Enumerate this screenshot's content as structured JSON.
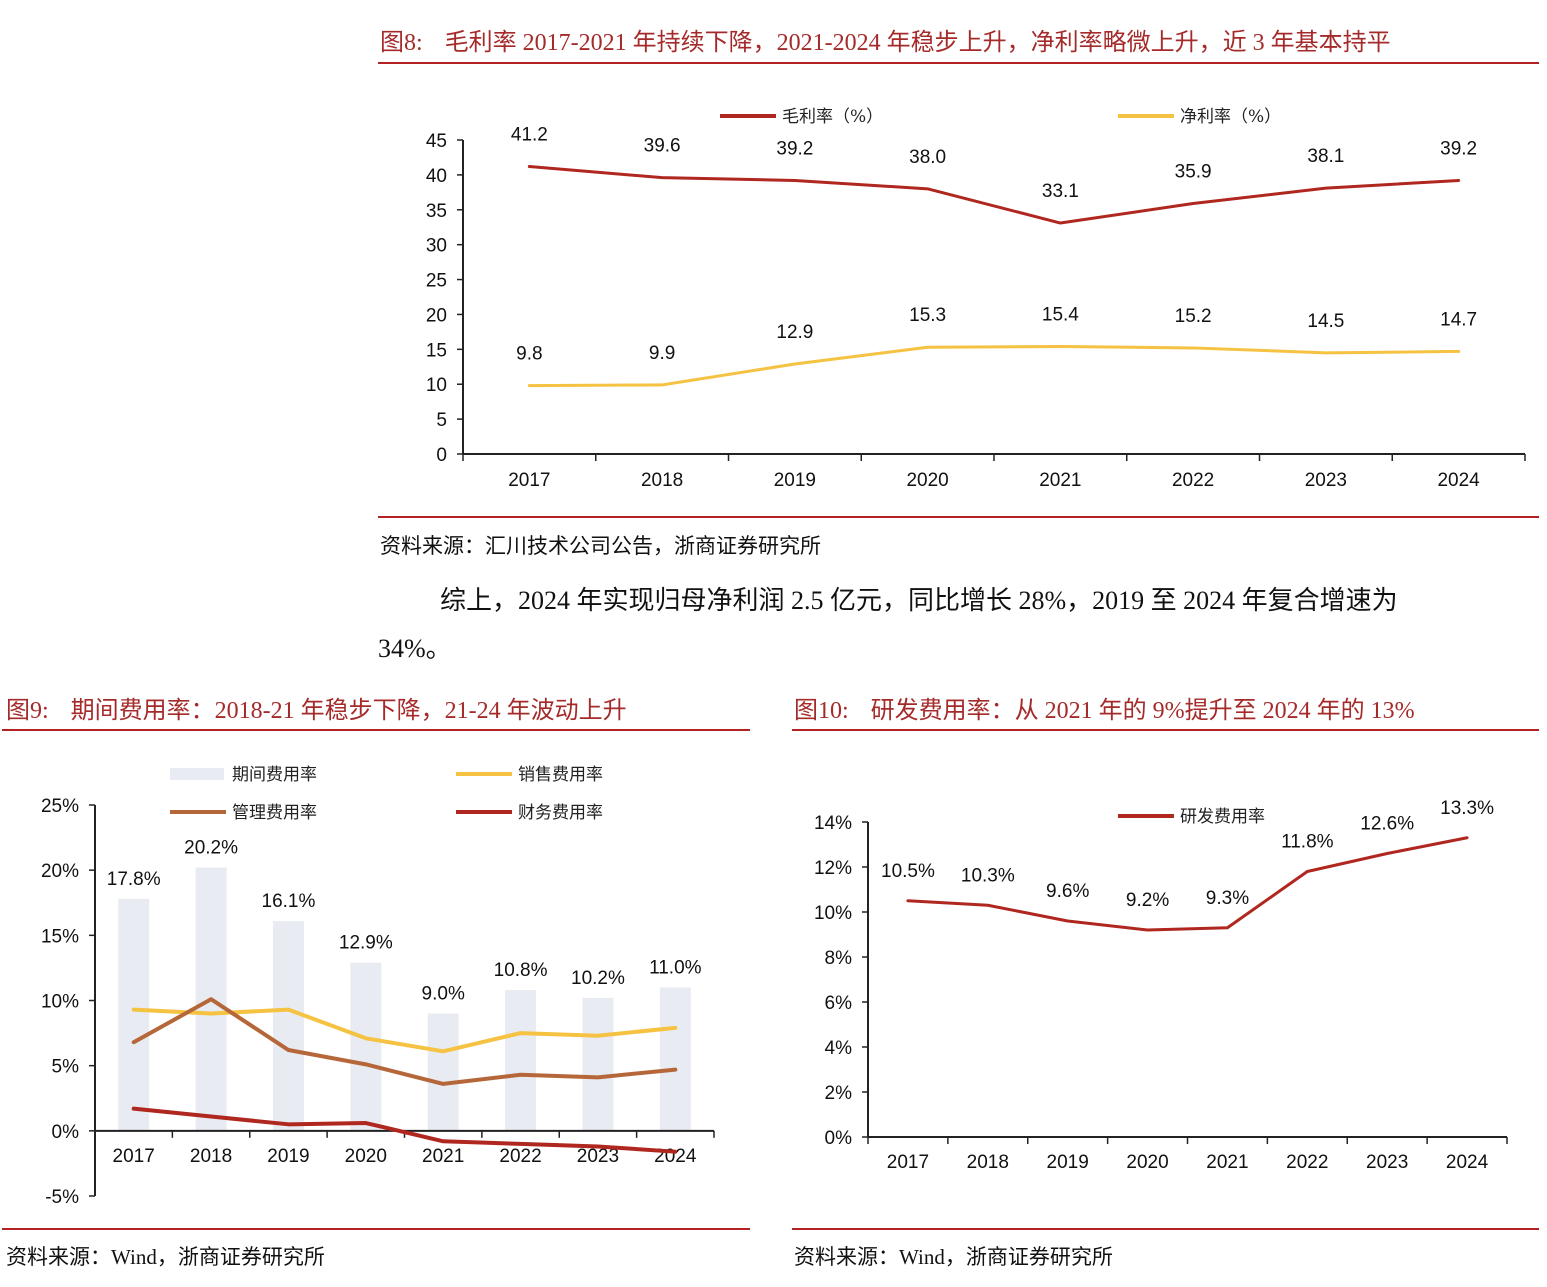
{
  "figure8": {
    "number": "图8:",
    "title": "毛利率 2017-2021 年持续下降，2021-2024 年稳步上升，净利率略微上升，近 3 年基本持平",
    "source": "资料来源：汇川技术公司公告，浙商证券研究所"
  },
  "paragraph": {
    "line1": "综上，2024 年实现归母净利润 2.5 亿元，同比增长 28%，2019 至 2024 年复合增速为",
    "line2": "34%。"
  },
  "figure9": {
    "number": "图9:",
    "title": "期间费用率：2018-21 年稳步下降，21-24 年波动上升",
    "source": "资料来源：Wind，浙商证券研究所"
  },
  "figure10": {
    "number": "图10:",
    "title": "研发费用率：从 2021 年的 9%提升至 2024 年的 13%",
    "source": "资料来源：Wind，浙商证券研究所"
  },
  "chart_data": [
    {
      "id": "fig8",
      "type": "line",
      "title": "",
      "categories": [
        "2017",
        "2018",
        "2019",
        "2020",
        "2021",
        "2022",
        "2023",
        "2024"
      ],
      "ylim": [
        0,
        45
      ],
      "yticks": [
        "0",
        "5",
        "10",
        "15",
        "20",
        "25",
        "30",
        "35",
        "40",
        "45"
      ],
      "ytick_values": [
        0,
        5,
        10,
        15,
        20,
        25,
        30,
        35,
        40,
        45
      ],
      "xlabel": "",
      "ylabel": "",
      "grid": false,
      "legend": "top",
      "series": [
        {
          "name": "毛利率（%）",
          "color": "#b0271f",
          "values": [
            41.2,
            39.6,
            39.2,
            38.0,
            33.1,
            35.9,
            38.1,
            39.2
          ],
          "labels": [
            "41.2",
            "39.6",
            "39.2",
            "38.0",
            "33.1",
            "35.9",
            "38.1",
            "39.2"
          ]
        },
        {
          "name": "净利率（%）",
          "color": "#f5c242",
          "values": [
            9.8,
            9.9,
            12.9,
            15.3,
            15.4,
            15.2,
            14.5,
            14.7
          ],
          "labels": [
            "9.8",
            "9.9",
            "12.9",
            "15.3",
            "15.4",
            "15.2",
            "14.5",
            "14.7"
          ]
        }
      ]
    },
    {
      "id": "fig9",
      "type": "bar",
      "title": "",
      "categories": [
        "2017",
        "2018",
        "2019",
        "2020",
        "2021",
        "2022",
        "2023",
        "2024"
      ],
      "ylim": [
        -5,
        25
      ],
      "yticks": [
        "-5%",
        "0%",
        "5%",
        "10%",
        "15%",
        "20%",
        "25%"
      ],
      "ytick_values": [
        -5,
        0,
        5,
        10,
        15,
        20,
        25
      ],
      "xlabel": "",
      "ylabel": "",
      "grid": false,
      "legend": "top",
      "bars": {
        "name": "期间费用率",
        "color": "#e8ebf2",
        "values": [
          17.8,
          20.2,
          16.1,
          12.9,
          9.0,
          10.8,
          10.2,
          11.0
        ],
        "labels": [
          "17.8%",
          "20.2%",
          "16.1%",
          "12.9%",
          "9.0%",
          "10.8%",
          "10.2%",
          "11.0%"
        ]
      },
      "series": [
        {
          "name": "销售费用率",
          "color": "#f5c242",
          "values": [
            9.3,
            9.0,
            9.3,
            7.1,
            6.1,
            7.5,
            7.3,
            7.9
          ]
        },
        {
          "name": "管理费用率",
          "color": "#b5673a",
          "values": [
            6.8,
            10.1,
            6.2,
            5.1,
            3.6,
            4.3,
            4.1,
            4.7
          ]
        },
        {
          "name": "财务费用率",
          "color": "#b0271f",
          "values": [
            1.7,
            1.1,
            0.5,
            0.6,
            -0.8,
            -1.0,
            -1.2,
            -1.6
          ]
        }
      ]
    },
    {
      "id": "fig10",
      "type": "line",
      "title": "",
      "categories": [
        "2017",
        "2018",
        "2019",
        "2020",
        "2021",
        "2022",
        "2023",
        "2024"
      ],
      "ylim": [
        0,
        14
      ],
      "yticks": [
        "0%",
        "2%",
        "4%",
        "6%",
        "8%",
        "10%",
        "12%",
        "14%"
      ],
      "ytick_values": [
        0,
        2,
        4,
        6,
        8,
        10,
        12,
        14
      ],
      "xlabel": "",
      "ylabel": "",
      "grid": false,
      "legend": "top",
      "series": [
        {
          "name": "研发费用率",
          "color": "#b0271f",
          "values": [
            10.5,
            10.3,
            9.6,
            9.2,
            9.3,
            11.8,
            12.6,
            13.3
          ],
          "labels": [
            "10.5%",
            "10.3%",
            "9.6%",
            "9.2%",
            "9.3%",
            "11.8%",
            "12.6%",
            "13.3%"
          ]
        }
      ]
    }
  ]
}
